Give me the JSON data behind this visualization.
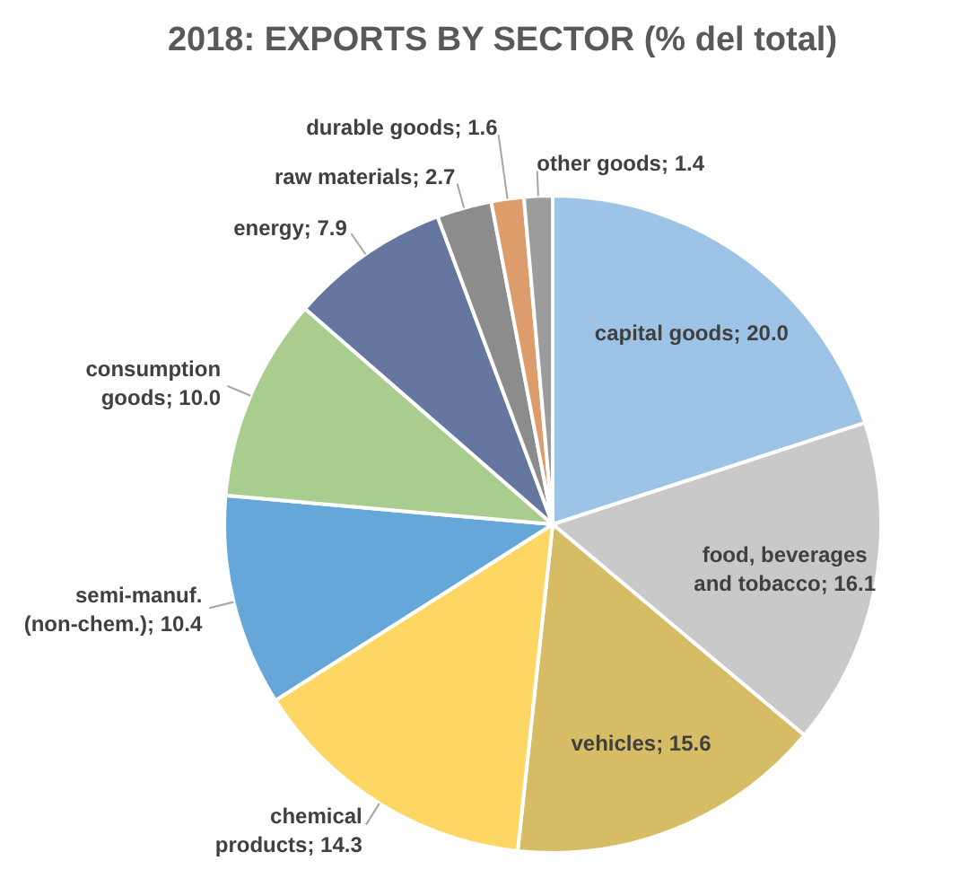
{
  "chart_data": {
    "type": "pie",
    "title": "2018: EXPORTS BY SECTOR (% del total)",
    "categories": [
      "capital goods",
      "food, beverages and tobacco",
      "vehicles",
      "chemical products",
      "semi-manuf. (non-chem.)",
      "consumption goods",
      "energy",
      "raw materials",
      "durable goods",
      "other goods"
    ],
    "values": [
      20.0,
      16.1,
      15.6,
      14.3,
      10.4,
      10.0,
      7.9,
      2.7,
      1.6,
      1.4
    ],
    "value_labels": [
      "20.0",
      "16.1",
      "15.6",
      "14.3",
      "10.4",
      "10.0",
      "7.9",
      "2.7",
      "1.6",
      "1.4"
    ],
    "colors": [
      "#9dc3e6",
      "#c9c9c9",
      "#d6bc65",
      "#fdd663",
      "#65a7d8",
      "#a9cd8e",
      "#65779f",
      "#8c8c8c",
      "#dd9c6c",
      "#9c9c9c"
    ]
  }
}
